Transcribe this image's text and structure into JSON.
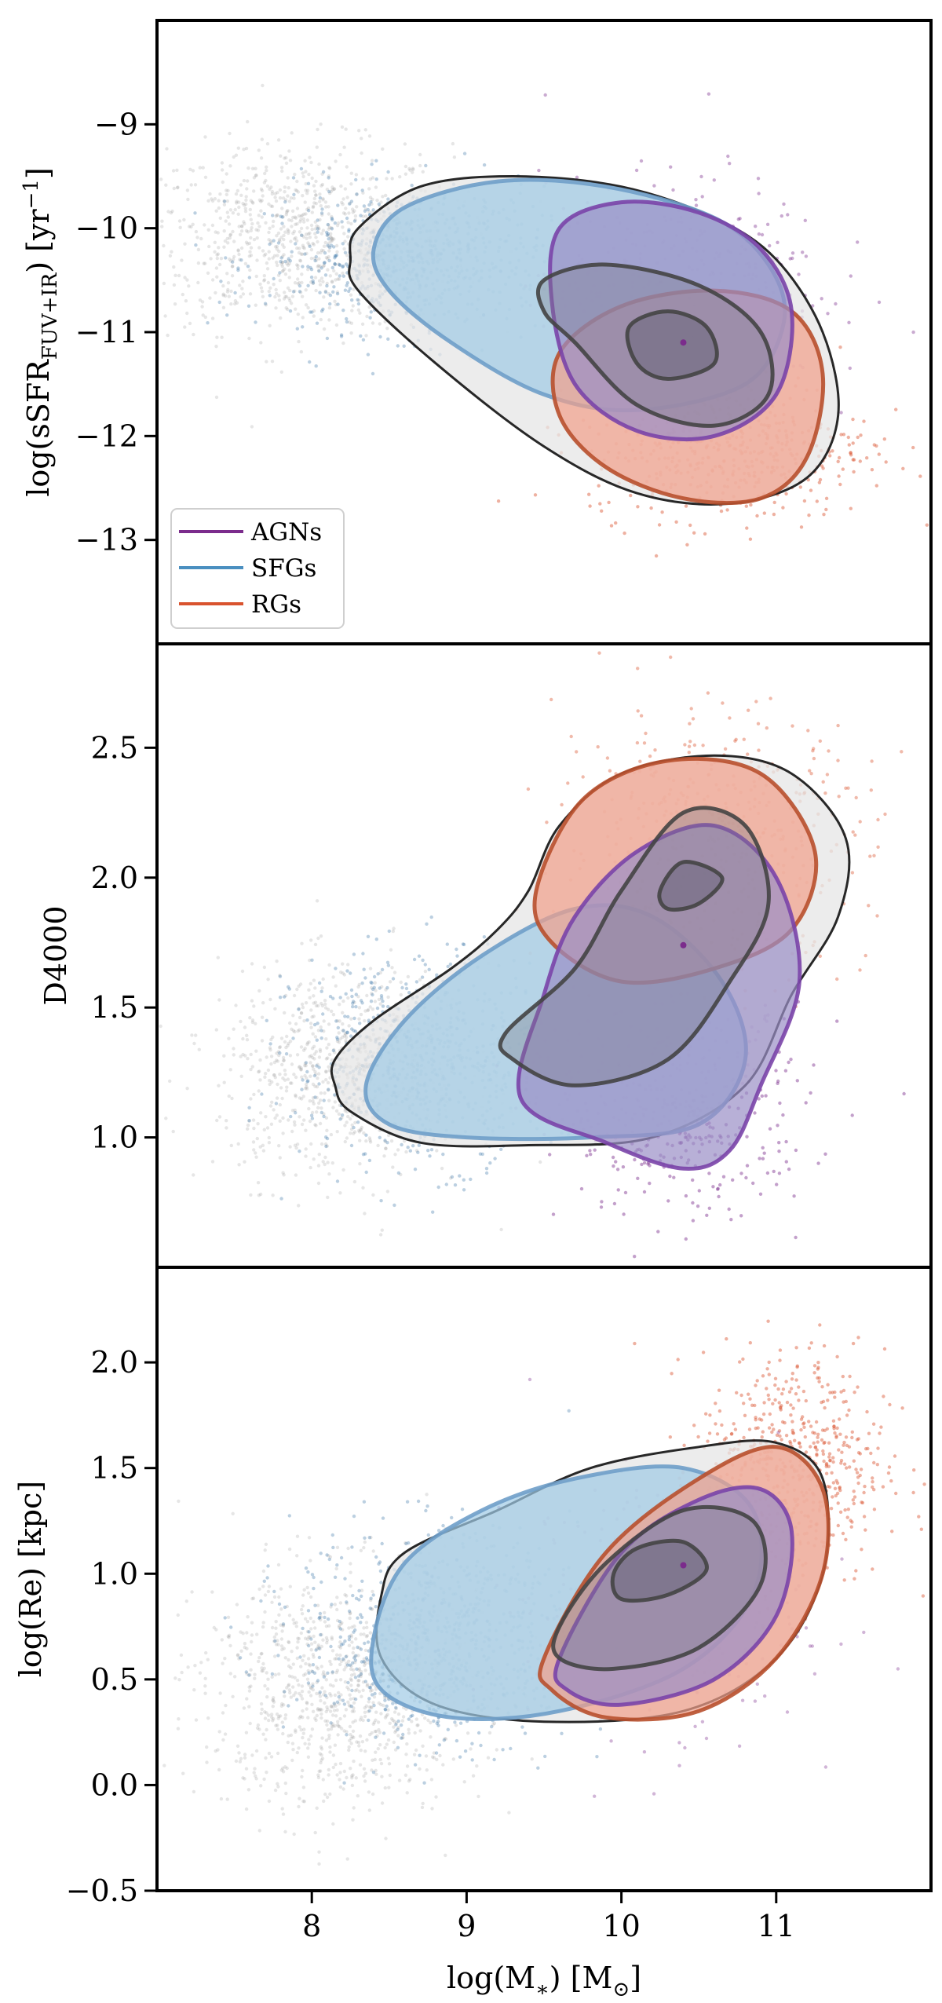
{
  "chart_data": [
    {
      "type": "scatter",
      "panel": "top",
      "ylabel_main": "log(sSFR",
      "ylabel_sub": "FUV+IR",
      "ylabel_unit": ") [yr",
      "ylabel_sup": "−1",
      "ylabel_close": "]",
      "ylim": [
        -14.0,
        -8.0
      ],
      "xlim": [
        7.0,
        12.0
      ],
      "yticks": [
        -9,
        -10,
        -11,
        -12,
        -13
      ],
      "ytick_labels": [
        "−9",
        "−10",
        "−11",
        "−12",
        "−13"
      ],
      "legend": {
        "position": "lower-left",
        "entries": [
          {
            "label": "AGNs",
            "color": "#7b2c8c"
          },
          {
            "label": "SFGs",
            "color": "#4a8fc0"
          },
          {
            "label": "RGs",
            "color": "#d9532e"
          }
        ]
      },
      "contours": [
        {
          "name": "all",
          "fill": "#e6e6e6",
          "stroke": "#111111",
          "points": [
            [
              8.3,
              -10.0
            ],
            [
              8.7,
              -9.6
            ],
            [
              9.3,
              -9.5
            ],
            [
              10.0,
              -9.6
            ],
            [
              10.6,
              -9.9
            ],
            [
              11.0,
              -10.3
            ],
            [
              11.3,
              -11.0
            ],
            [
              11.4,
              -11.8
            ],
            [
              11.2,
              -12.4
            ],
            [
              10.7,
              -12.65
            ],
            [
              10.1,
              -12.55
            ],
            [
              9.5,
              -12.1
            ],
            [
              8.8,
              -11.3
            ],
            [
              8.3,
              -10.6
            ],
            [
              8.25,
              -10.3
            ]
          ]
        },
        {
          "name": "SFGs",
          "fill": "#9fcbe6",
          "stroke": "#6f9fc9",
          "points": [
            [
              8.4,
              -10.2
            ],
            [
              8.6,
              -9.8
            ],
            [
              9.2,
              -9.55
            ],
            [
              9.9,
              -9.6
            ],
            [
              10.6,
              -9.9
            ],
            [
              10.95,
              -10.35
            ],
            [
              11.05,
              -10.9
            ],
            [
              10.8,
              -11.5
            ],
            [
              10.1,
              -11.75
            ],
            [
              9.5,
              -11.6
            ],
            [
              8.9,
              -11.1
            ],
            [
              8.5,
              -10.6
            ]
          ]
        },
        {
          "name": "RGs",
          "fill": "#f2a08a",
          "stroke": "#b8502e",
          "points": [
            [
              9.6,
              -11.2
            ],
            [
              10.0,
              -10.75
            ],
            [
              10.6,
              -10.6
            ],
            [
              11.1,
              -10.8
            ],
            [
              11.3,
              -11.4
            ],
            [
              11.2,
              -12.2
            ],
            [
              10.9,
              -12.6
            ],
            [
              10.4,
              -12.6
            ],
            [
              9.9,
              -12.3
            ],
            [
              9.6,
              -11.8
            ]
          ]
        },
        {
          "name": "AGNs",
          "fill": "#9a8fc6",
          "stroke": "#7a44a8",
          "points": [
            [
              9.6,
              -10.0
            ],
            [
              10.0,
              -9.75
            ],
            [
              10.5,
              -9.85
            ],
            [
              10.9,
              -10.2
            ],
            [
              11.1,
              -10.8
            ],
            [
              11.0,
              -11.6
            ],
            [
              10.6,
              -12.0
            ],
            [
              10.1,
              -11.95
            ],
            [
              9.7,
              -11.5
            ],
            [
              9.55,
              -10.7
            ]
          ]
        },
        {
          "name": "all-inner",
          "fill": "#7a7a8a",
          "stroke": "#444444",
          "opacity": 0.35,
          "points": [
            [
              9.5,
              -10.5
            ],
            [
              9.9,
              -10.35
            ],
            [
              10.5,
              -10.55
            ],
            [
              10.9,
              -11.0
            ],
            [
              10.95,
              -11.6
            ],
            [
              10.6,
              -11.9
            ],
            [
              10.1,
              -11.7
            ],
            [
              9.7,
              -11.1
            ],
            [
              9.5,
              -10.8
            ]
          ]
        },
        {
          "name": "all-core",
          "fill": "#5e5a6e",
          "stroke": "#444444",
          "opacity": 0.45,
          "points": [
            [
              10.05,
              -10.95
            ],
            [
              10.3,
              -10.8
            ],
            [
              10.55,
              -10.95
            ],
            [
              10.6,
              -11.3
            ],
            [
              10.3,
              -11.45
            ],
            [
              10.1,
              -11.3
            ]
          ]
        }
      ],
      "center_point": [
        10.4,
        -11.1
      ]
    },
    {
      "type": "scatter",
      "panel": "middle",
      "ylabel_main": "D4000",
      "ylim": [
        0.5,
        2.9
      ],
      "xlim": [
        7.0,
        12.0
      ],
      "yticks": [
        2.5,
        2.0,
        1.5,
        1.0
      ],
      "ytick_labels": [
        "2.5",
        "2.0",
        "1.5",
        "1.0"
      ],
      "contours": [
        {
          "name": "all",
          "fill": "#e6e6e6",
          "stroke": "#111111",
          "points": [
            [
              8.15,
              1.3
            ],
            [
              8.4,
              1.45
            ],
            [
              8.9,
              1.65
            ],
            [
              9.2,
              1.8
            ],
            [
              9.4,
              1.95
            ],
            [
              9.6,
              2.2
            ],
            [
              10.0,
              2.4
            ],
            [
              10.6,
              2.47
            ],
            [
              11.1,
              2.4
            ],
            [
              11.45,
              2.15
            ],
            [
              11.4,
              1.85
            ],
            [
              11.1,
              1.55
            ],
            [
              10.8,
              1.2
            ],
            [
              10.2,
              1.0
            ],
            [
              9.4,
              0.97
            ],
            [
              8.7,
              0.98
            ],
            [
              8.25,
              1.1
            ],
            [
              8.15,
              1.2
            ]
          ]
        },
        {
          "name": "SFGs",
          "fill": "#9fcbe6",
          "stroke": "#6f9fc9",
          "points": [
            [
              8.35,
              1.2
            ],
            [
              8.6,
              1.45
            ],
            [
              9.1,
              1.7
            ],
            [
              9.7,
              1.88
            ],
            [
              10.2,
              1.85
            ],
            [
              10.65,
              1.6
            ],
            [
              10.8,
              1.3
            ],
            [
              10.5,
              1.05
            ],
            [
              9.8,
              1.0
            ],
            [
              9.0,
              1.0
            ],
            [
              8.5,
              1.05
            ]
          ]
        },
        {
          "name": "RGs",
          "fill": "#f2a08a",
          "stroke": "#b8502e",
          "points": [
            [
              9.45,
              1.95
            ],
            [
              9.75,
              2.3
            ],
            [
              10.3,
              2.45
            ],
            [
              10.9,
              2.4
            ],
            [
              11.25,
              2.1
            ],
            [
              11.1,
              1.8
            ],
            [
              10.6,
              1.65
            ],
            [
              10.0,
              1.6
            ],
            [
              9.55,
              1.75
            ]
          ]
        },
        {
          "name": "AGNs",
          "fill": "#9a8fc6",
          "stroke": "#7a44a8",
          "points": [
            [
              9.5,
              1.55
            ],
            [
              9.7,
              1.85
            ],
            [
              10.1,
              2.1
            ],
            [
              10.6,
              2.2
            ],
            [
              11.0,
              2.0
            ],
            [
              11.15,
              1.6
            ],
            [
              10.9,
              1.2
            ],
            [
              10.7,
              0.95
            ],
            [
              10.4,
              0.88
            ],
            [
              9.9,
              0.98
            ],
            [
              9.35,
              1.15
            ]
          ]
        },
        {
          "name": "all-inner",
          "fill": "#7a7a8a",
          "stroke": "#444444",
          "opacity": 0.35,
          "points": [
            [
              9.25,
              1.4
            ],
            [
              9.7,
              1.65
            ],
            [
              10.0,
              1.95
            ],
            [
              10.4,
              2.25
            ],
            [
              10.8,
              2.2
            ],
            [
              10.95,
              1.9
            ],
            [
              10.7,
              1.6
            ],
            [
              10.3,
              1.3
            ],
            [
              9.7,
              1.2
            ],
            [
              9.3,
              1.3
            ]
          ]
        },
        {
          "name": "all-core",
          "fill": "#5e5a6e",
          "stroke": "#444444",
          "opacity": 0.45,
          "points": [
            [
              10.25,
              1.95
            ],
            [
              10.4,
              2.06
            ],
            [
              10.65,
              2.0
            ],
            [
              10.5,
              1.9
            ],
            [
              10.3,
              1.88
            ]
          ]
        }
      ],
      "center_point": [
        10.4,
        1.74
      ]
    },
    {
      "type": "scatter",
      "panel": "bottom",
      "ylabel_main": "log(Re) [kpc]",
      "ylim": [
        -0.5,
        2.45
      ],
      "xlim": [
        7.0,
        12.0
      ],
      "yticks": [
        2.0,
        1.5,
        1.0,
        0.5,
        0.0,
        -0.5
      ],
      "ytick_labels": [
        "2.0",
        "1.5",
        "1.0",
        "0.5",
        "0.0",
        "−0.5"
      ],
      "xticks": [
        8,
        9,
        10,
        11
      ],
      "xtick_labels": [
        "8",
        "9",
        "10",
        "11"
      ],
      "xlabel_main": "log(M",
      "xlabel_sub": "∗",
      "xlabel_unit": ") [M",
      "xlabel_sub2": "⊙",
      "xlabel_close": "]",
      "contours": [
        {
          "name": "all",
          "fill": "#e6e6e6",
          "stroke": "#111111",
          "points": [
            [
              8.45,
              0.9
            ],
            [
              8.6,
              1.1
            ],
            [
              9.2,
              1.3
            ],
            [
              9.8,
              1.5
            ],
            [
              10.5,
              1.6
            ],
            [
              11.0,
              1.62
            ],
            [
              11.3,
              1.45
            ],
            [
              11.3,
              1.0
            ],
            [
              11.0,
              0.6
            ],
            [
              10.4,
              0.35
            ],
            [
              9.5,
              0.3
            ],
            [
              8.8,
              0.38
            ],
            [
              8.45,
              0.6
            ]
          ]
        },
        {
          "name": "SFGs",
          "fill": "#9fcbe6",
          "stroke": "#6f9fc9",
          "points": [
            [
              8.4,
              0.7
            ],
            [
              8.6,
              1.05
            ],
            [
              9.1,
              1.3
            ],
            [
              9.7,
              1.45
            ],
            [
              10.4,
              1.5
            ],
            [
              10.85,
              1.3
            ],
            [
              10.85,
              0.9
            ],
            [
              10.4,
              0.55
            ],
            [
              9.6,
              0.35
            ],
            [
              8.9,
              0.32
            ],
            [
              8.45,
              0.45
            ]
          ]
        },
        {
          "name": "RGs",
          "fill": "#f2a08a",
          "stroke": "#b8502e",
          "points": [
            [
              9.5,
              0.6
            ],
            [
              9.9,
              1.1
            ],
            [
              10.5,
              1.45
            ],
            [
              11.0,
              1.6
            ],
            [
              11.3,
              1.4
            ],
            [
              11.3,
              1.0
            ],
            [
              11.0,
              0.6
            ],
            [
              10.5,
              0.35
            ],
            [
              9.9,
              0.32
            ],
            [
              9.55,
              0.45
            ]
          ]
        },
        {
          "name": "AGNs",
          "fill": "#9a8fc6",
          "stroke": "#7a44a8",
          "points": [
            [
              9.6,
              0.6
            ],
            [
              10.0,
              1.1
            ],
            [
              10.5,
              1.35
            ],
            [
              10.9,
              1.4
            ],
            [
              11.1,
              1.2
            ],
            [
              11.0,
              0.8
            ],
            [
              10.6,
              0.5
            ],
            [
              10.0,
              0.38
            ],
            [
              9.65,
              0.45
            ]
          ]
        },
        {
          "name": "all-inner",
          "fill": "#7a7a8a",
          "stroke": "#444444",
          "opacity": 0.35,
          "points": [
            [
              9.6,
              0.75
            ],
            [
              9.9,
              1.05
            ],
            [
              10.4,
              1.3
            ],
            [
              10.85,
              1.25
            ],
            [
              10.9,
              0.95
            ],
            [
              10.5,
              0.65
            ],
            [
              9.95,
              0.55
            ],
            [
              9.6,
              0.6
            ]
          ]
        },
        {
          "name": "all-core",
          "fill": "#5e5a6e",
          "stroke": "#444444",
          "opacity": 0.45,
          "points": [
            [
              9.95,
              1.0
            ],
            [
              10.1,
              1.12
            ],
            [
              10.4,
              1.15
            ],
            [
              10.55,
              1.02
            ],
            [
              10.3,
              0.9
            ],
            [
              10.0,
              0.88
            ]
          ]
        }
      ],
      "center_point": [
        10.4,
        1.04
      ]
    }
  ]
}
